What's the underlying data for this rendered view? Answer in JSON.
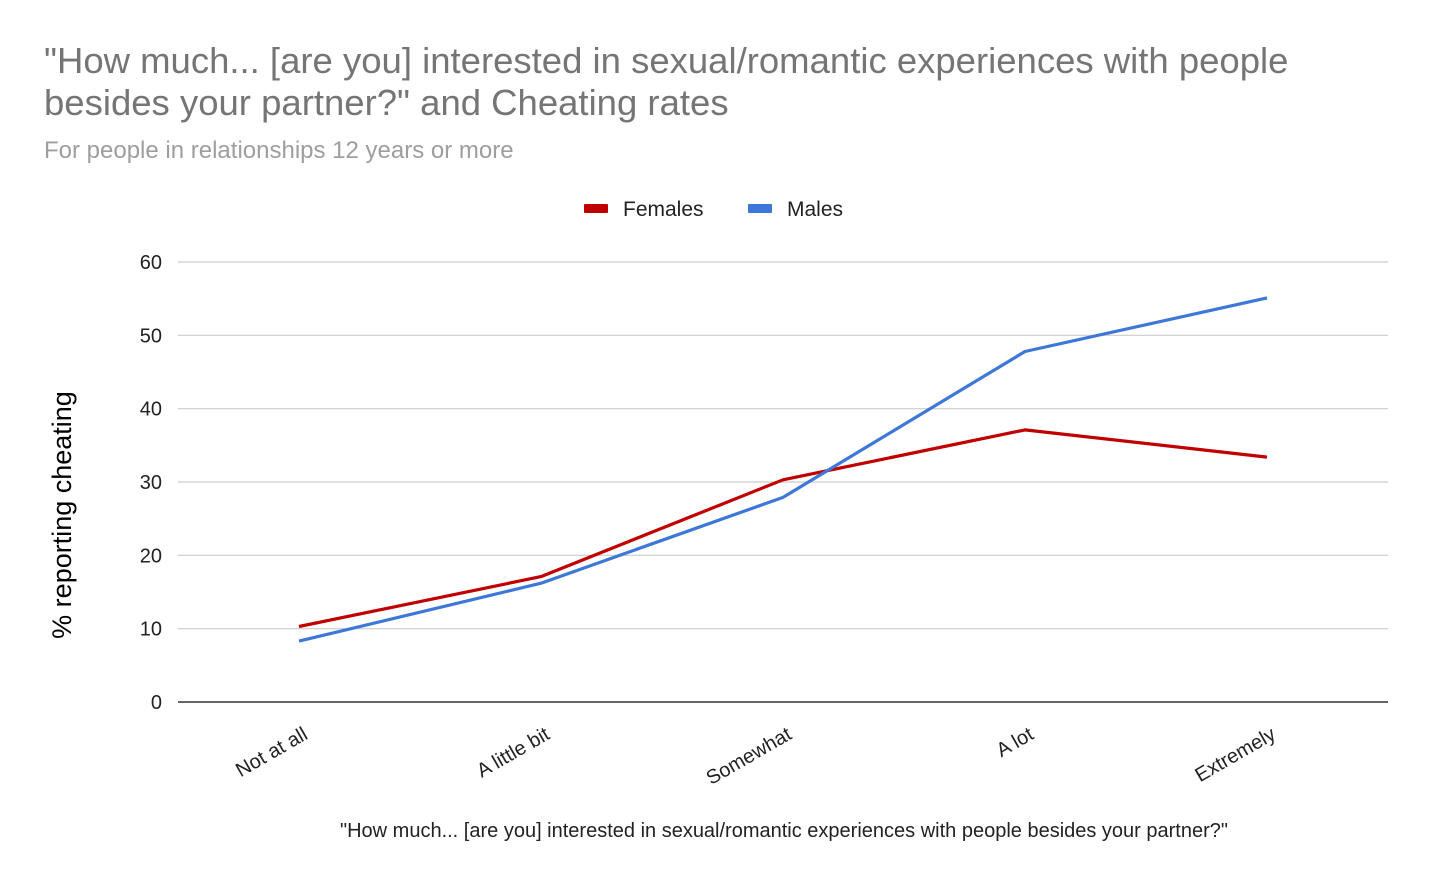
{
  "chart_data": {
    "type": "line",
    "title": "\"How much... [are you] interested in sexual/romantic experiences with people besides your partner?\" and Cheating rates",
    "subtitle": "For people in relationships 12 years or more",
    "xlabel": "\"How much... [are you] interested in sexual/romantic experiences with people besides your partner?\"",
    "ylabel": "% reporting cheating",
    "categories": [
      "Not at all",
      "A little bit",
      "Somewhat",
      "A lot",
      "Extremely"
    ],
    "ylim": [
      0,
      60
    ],
    "yticks": [
      "0",
      "10",
      "20",
      "30",
      "40",
      "50",
      "60"
    ],
    "grid": true,
    "legend_position": "top",
    "series": [
      {
        "name": "Females",
        "color": "#c00000",
        "values": [
          10.3,
          17.1,
          30.3,
          37.1,
          33.4
        ]
      },
      {
        "name": "Males",
        "color": "#3d78d8",
        "values": [
          8.3,
          16.2,
          27.9,
          47.8,
          55.1
        ]
      }
    ]
  }
}
